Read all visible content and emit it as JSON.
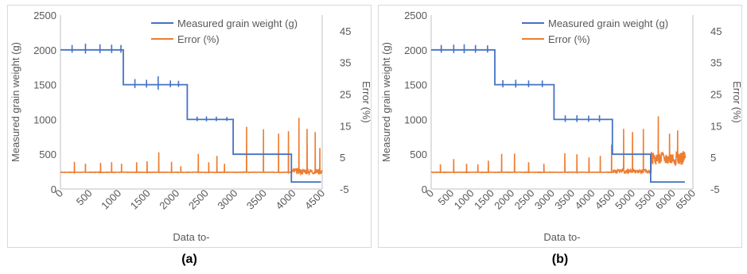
{
  "captions": [
    "(a)",
    "(b)"
  ],
  "colors": {
    "weight": "#4472C4",
    "error": "#ED7D31",
    "axis": "#bfbfbf",
    "text": "#595959"
  },
  "chart_data": [
    {
      "type": "line",
      "panel_label": "(a)",
      "xlabel": "Data to-",
      "ylabel": "Measured grain weight (g)",
      "y2label": "Error (%)",
      "xlim": [
        0,
        4500
      ],
      "ylim": [
        0,
        2500
      ],
      "y2lim": [
        -5,
        50
      ],
      "x_ticks": [
        "0",
        "500",
        "1000",
        "1500",
        "2000",
        "2500",
        "3000",
        "3500",
        "4000",
        "4500"
      ],
      "y_ticks": [
        "0",
        "500",
        "1000",
        "1500",
        "2000",
        "2500"
      ],
      "y2_ticks": [
        "-5",
        "5",
        "15",
        "25",
        "35",
        "45"
      ],
      "legend_position": "top-center",
      "series": [
        {
          "name": "Measured grain weight (g)",
          "axis": "left",
          "steps": [
            {
              "x0": 0,
              "x1": 1080,
              "y": 2000
            },
            {
              "x0": 1080,
              "x1": 2180,
              "y": 1500
            },
            {
              "x0": 2180,
              "x1": 2970,
              "y": 1000
            },
            {
              "x0": 2970,
              "x1": 3970,
              "y": 500
            },
            {
              "x0": 3970,
              "x1": 4480,
              "y": 100
            }
          ],
          "spikes": [
            {
              "x": 200,
              "d": 70
            },
            {
              "x": 430,
              "d": 90
            },
            {
              "x": 680,
              "d": 80
            },
            {
              "x": 880,
              "d": 75
            },
            {
              "x": 1040,
              "d": 70
            },
            {
              "x": 1280,
              "d": 80
            },
            {
              "x": 1480,
              "d": 70
            },
            {
              "x": 1680,
              "d": 120
            },
            {
              "x": 1890,
              "d": 60
            },
            {
              "x": 2030,
              "d": 55
            },
            {
              "x": 2350,
              "d": 40
            },
            {
              "x": 2510,
              "d": 45
            },
            {
              "x": 2680,
              "d": 40
            },
            {
              "x": 2860,
              "d": 35
            }
          ]
        },
        {
          "name": "Error (%)",
          "axis": "right",
          "baseline": 0.3,
          "spikes": [
            {
              "x": 240,
              "v": 3.6
            },
            {
              "x": 430,
              "v": 3.0
            },
            {
              "x": 690,
              "v": 3.3
            },
            {
              "x": 880,
              "v": 3.5
            },
            {
              "x": 1050,
              "v": 3.0
            },
            {
              "x": 1310,
              "v": 3.5
            },
            {
              "x": 1490,
              "v": 3.8
            },
            {
              "x": 1690,
              "v": 6.6
            },
            {
              "x": 1910,
              "v": 3.6
            },
            {
              "x": 2070,
              "v": 2.2
            },
            {
              "x": 2370,
              "v": 6.1
            },
            {
              "x": 2550,
              "v": 3.5
            },
            {
              "x": 2690,
              "v": 5.5
            },
            {
              "x": 2820,
              "v": 3.0
            },
            {
              "x": 3200,
              "v": 14.7
            },
            {
              "x": 3490,
              "v": 13.9
            },
            {
              "x": 3750,
              "v": 12.5
            },
            {
              "x": 3920,
              "v": 13.3
            },
            {
              "x": 4100,
              "v": 17.5
            },
            {
              "x": 4240,
              "v": 14.0
            },
            {
              "x": 4380,
              "v": 13.0
            },
            {
              "x": 4460,
              "v": 8.0
            }
          ],
          "noise_region": {
            "x0": 3980,
            "x1": 4500,
            "amp": 0.9,
            "offset": 0.6
          }
        }
      ]
    },
    {
      "type": "line",
      "panel_label": "(b)",
      "xlabel": "Data to-",
      "ylabel": "Measured grain weight (g)",
      "y2label": "Error (%)",
      "xlim": [
        0,
        6500
      ],
      "ylim": [
        0,
        2500
      ],
      "y2lim": [
        -5,
        50
      ],
      "x_ticks": [
        "0",
        "500",
        "1000",
        "1500",
        "2000",
        "2500",
        "3000",
        "3500",
        "4000",
        "4500",
        "5000",
        "5500",
        "6000",
        "6500"
      ],
      "y_ticks": [
        "0",
        "500",
        "1000",
        "1500",
        "2000",
        "2500"
      ],
      "y2_ticks": [
        "-5",
        "5",
        "15",
        "25",
        "35",
        "45"
      ],
      "legend_position": "top-center",
      "series": [
        {
          "name": "Measured grain weight (g)",
          "axis": "left",
          "steps": [
            {
              "x0": 0,
              "x1": 1580,
              "y": 2000
            },
            {
              "x0": 1580,
              "x1": 3050,
              "y": 1500
            },
            {
              "x0": 3050,
              "x1": 4500,
              "y": 1000
            },
            {
              "x0": 4500,
              "x1": 5450,
              "y": 500
            },
            {
              "x0": 5450,
              "x1": 6300,
              "y": 100
            }
          ],
          "spikes": [
            {
              "x": 250,
              "d": 70
            },
            {
              "x": 560,
              "d": 75
            },
            {
              "x": 820,
              "d": 80
            },
            {
              "x": 1100,
              "d": 70
            },
            {
              "x": 1400,
              "d": 65
            },
            {
              "x": 1780,
              "d": 65
            },
            {
              "x": 2100,
              "d": 70
            },
            {
              "x": 2420,
              "d": 60
            },
            {
              "x": 2760,
              "d": 60
            },
            {
              "x": 3330,
              "d": 60
            },
            {
              "x": 3620,
              "d": 60
            },
            {
              "x": 3910,
              "d": 55
            },
            {
              "x": 4180,
              "d": 60
            }
          ]
        },
        {
          "name": "Error (%)",
          "axis": "right",
          "baseline": 0.3,
          "spikes": [
            {
              "x": 230,
              "v": 2.8
            },
            {
              "x": 560,
              "v": 4.5
            },
            {
              "x": 880,
              "v": 3.0
            },
            {
              "x": 1160,
              "v": 2.8
            },
            {
              "x": 1420,
              "v": 4.0
            },
            {
              "x": 1750,
              "v": 6.1
            },
            {
              "x": 2070,
              "v": 6.2
            },
            {
              "x": 2420,
              "v": 3.5
            },
            {
              "x": 2800,
              "v": 3.0
            },
            {
              "x": 3320,
              "v": 6.3
            },
            {
              "x": 3620,
              "v": 6.0
            },
            {
              "x": 3920,
              "v": 5.0
            },
            {
              "x": 4200,
              "v": 5.5
            },
            {
              "x": 4480,
              "v": 9.0
            },
            {
              "x": 4780,
              "v": 14.0
            },
            {
              "x": 5000,
              "v": 13.0
            },
            {
              "x": 5270,
              "v": 14.0
            },
            {
              "x": 5640,
              "v": 18.0
            },
            {
              "x": 5920,
              "v": 12.5
            },
            {
              "x": 6120,
              "v": 13.5
            },
            {
              "x": 6260,
              "v": 7.0
            }
          ],
          "noise_region": {
            "x0": 5460,
            "x1": 6320,
            "amp": 2.2,
            "offset": 4.8
          },
          "noise_region2": {
            "x0": 4520,
            "x1": 5450,
            "amp": 0.6,
            "offset": 0.6
          }
        }
      ]
    }
  ]
}
